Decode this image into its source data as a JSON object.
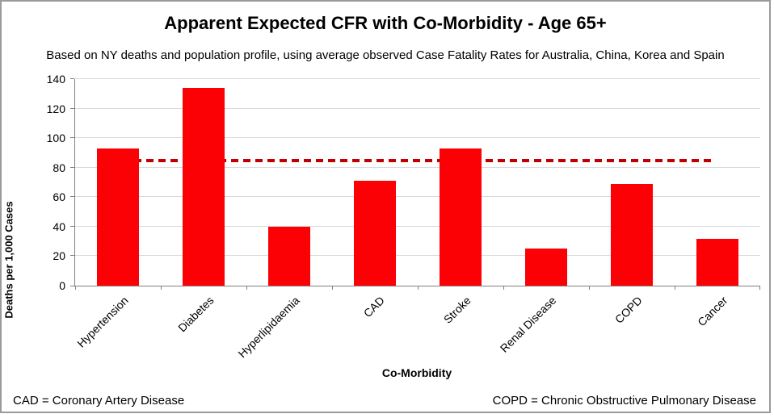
{
  "chart_data": {
    "type": "bar",
    "title": "Apparent Expected CFR with Co-Morbidity - Age 65+",
    "subtitle": "Based on NY deaths and population profile, using average observed Case Fatality Rates for Australia, China, Korea and Spain",
    "categories": [
      "Hypertension",
      "Diabetes",
      "Hyperlipidaemia",
      "CAD",
      "Stroke",
      "Renal Disease",
      "COPD",
      "Cancer"
    ],
    "values": [
      93,
      134,
      40,
      71,
      93,
      25,
      69,
      32
    ],
    "xlabel": "Co-Morbidity",
    "ylabel": "Deaths per 1,000 Cases",
    "ylim": [
      0,
      140
    ],
    "ytick_step": 20,
    "bar_color": "#fb0005",
    "gridline_color": "#d9d9d9",
    "axis_color": "#808080",
    "grid": "on",
    "legend": "none",
    "reference_line": {
      "value": 85,
      "style": "dashed",
      "color": "#c00000"
    }
  },
  "footnotes": {
    "left": "CAD = Coronary Artery Disease",
    "right": "COPD = Chronic Obstructive Pulmonary Disease"
  }
}
